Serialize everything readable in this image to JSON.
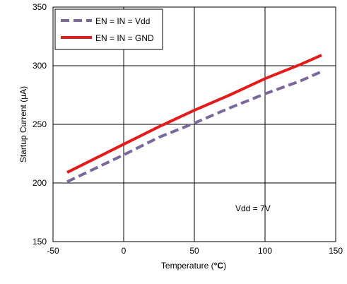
{
  "chart_data": {
    "type": "line",
    "xlabel_prefix": "Temperature (",
    "xlabel_unit": "°C",
    "xlabel_suffix": ")",
    "ylabel": "Startup Current (µA)",
    "xlim": [
      -50,
      150
    ],
    "ylim": [
      150,
      350
    ],
    "xticks": [
      -50,
      0,
      50,
      100,
      150
    ],
    "yticks": [
      150,
      200,
      250,
      300,
      350
    ],
    "grid": true,
    "legend_position": "top-left",
    "annotation": "Vdd = 7V",
    "series": [
      {
        "name": "EN = IN = Vdd",
        "color": "#7a689c",
        "style": "dashed",
        "x": [
          -40,
          0,
          25,
          50,
          75,
          100,
          125,
          140
        ],
        "y": [
          201,
          224,
          239,
          251,
          264,
          276,
          287,
          295
        ]
      },
      {
        "name": "EN = IN = GND",
        "color": "#e31b1b",
        "style": "solid",
        "x": [
          -40,
          0,
          25,
          50,
          75,
          100,
          125,
          140
        ],
        "y": [
          209,
          233,
          248,
          262,
          275,
          289,
          301,
          309
        ]
      }
    ]
  }
}
